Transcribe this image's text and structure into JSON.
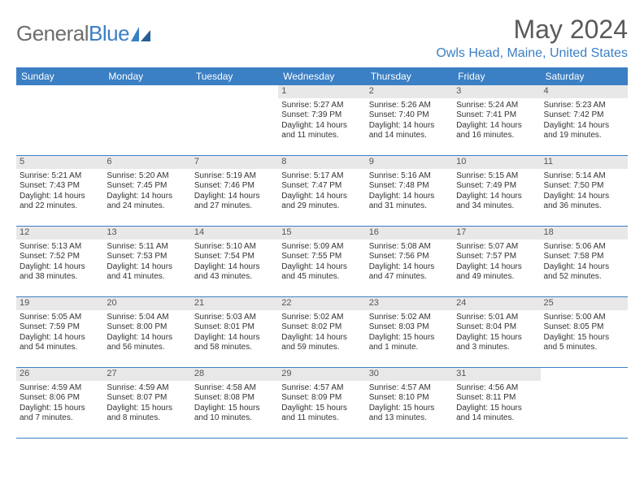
{
  "logo": {
    "text_gray": "General",
    "text_blue": "Blue"
  },
  "title": "May 2024",
  "location": "Owls Head, Maine, United States",
  "colors": {
    "header_bg": "#3b7fc4",
    "header_text": "#ffffff",
    "daynum_bg": "#e8e8e8",
    "border": "#3b7fc4",
    "title_gray": "#5a5a5a",
    "location_blue": "#3b7fc4"
  },
  "day_names": [
    "Sunday",
    "Monday",
    "Tuesday",
    "Wednesday",
    "Thursday",
    "Friday",
    "Saturday"
  ],
  "weeks": [
    [
      {
        "day": "",
        "sunrise": "",
        "sunset": "",
        "daylight": ""
      },
      {
        "day": "",
        "sunrise": "",
        "sunset": "",
        "daylight": ""
      },
      {
        "day": "",
        "sunrise": "",
        "sunset": "",
        "daylight": ""
      },
      {
        "day": "1",
        "sunrise": "Sunrise: 5:27 AM",
        "sunset": "Sunset: 7:39 PM",
        "daylight": "Daylight: 14 hours and 11 minutes."
      },
      {
        "day": "2",
        "sunrise": "Sunrise: 5:26 AM",
        "sunset": "Sunset: 7:40 PM",
        "daylight": "Daylight: 14 hours and 14 minutes."
      },
      {
        "day": "3",
        "sunrise": "Sunrise: 5:24 AM",
        "sunset": "Sunset: 7:41 PM",
        "daylight": "Daylight: 14 hours and 16 minutes."
      },
      {
        "day": "4",
        "sunrise": "Sunrise: 5:23 AM",
        "sunset": "Sunset: 7:42 PM",
        "daylight": "Daylight: 14 hours and 19 minutes."
      }
    ],
    [
      {
        "day": "5",
        "sunrise": "Sunrise: 5:21 AM",
        "sunset": "Sunset: 7:43 PM",
        "daylight": "Daylight: 14 hours and 22 minutes."
      },
      {
        "day": "6",
        "sunrise": "Sunrise: 5:20 AM",
        "sunset": "Sunset: 7:45 PM",
        "daylight": "Daylight: 14 hours and 24 minutes."
      },
      {
        "day": "7",
        "sunrise": "Sunrise: 5:19 AM",
        "sunset": "Sunset: 7:46 PM",
        "daylight": "Daylight: 14 hours and 27 minutes."
      },
      {
        "day": "8",
        "sunrise": "Sunrise: 5:17 AM",
        "sunset": "Sunset: 7:47 PM",
        "daylight": "Daylight: 14 hours and 29 minutes."
      },
      {
        "day": "9",
        "sunrise": "Sunrise: 5:16 AM",
        "sunset": "Sunset: 7:48 PM",
        "daylight": "Daylight: 14 hours and 31 minutes."
      },
      {
        "day": "10",
        "sunrise": "Sunrise: 5:15 AM",
        "sunset": "Sunset: 7:49 PM",
        "daylight": "Daylight: 14 hours and 34 minutes."
      },
      {
        "day": "11",
        "sunrise": "Sunrise: 5:14 AM",
        "sunset": "Sunset: 7:50 PM",
        "daylight": "Daylight: 14 hours and 36 minutes."
      }
    ],
    [
      {
        "day": "12",
        "sunrise": "Sunrise: 5:13 AM",
        "sunset": "Sunset: 7:52 PM",
        "daylight": "Daylight: 14 hours and 38 minutes."
      },
      {
        "day": "13",
        "sunrise": "Sunrise: 5:11 AM",
        "sunset": "Sunset: 7:53 PM",
        "daylight": "Daylight: 14 hours and 41 minutes."
      },
      {
        "day": "14",
        "sunrise": "Sunrise: 5:10 AM",
        "sunset": "Sunset: 7:54 PM",
        "daylight": "Daylight: 14 hours and 43 minutes."
      },
      {
        "day": "15",
        "sunrise": "Sunrise: 5:09 AM",
        "sunset": "Sunset: 7:55 PM",
        "daylight": "Daylight: 14 hours and 45 minutes."
      },
      {
        "day": "16",
        "sunrise": "Sunrise: 5:08 AM",
        "sunset": "Sunset: 7:56 PM",
        "daylight": "Daylight: 14 hours and 47 minutes."
      },
      {
        "day": "17",
        "sunrise": "Sunrise: 5:07 AM",
        "sunset": "Sunset: 7:57 PM",
        "daylight": "Daylight: 14 hours and 49 minutes."
      },
      {
        "day": "18",
        "sunrise": "Sunrise: 5:06 AM",
        "sunset": "Sunset: 7:58 PM",
        "daylight": "Daylight: 14 hours and 52 minutes."
      }
    ],
    [
      {
        "day": "19",
        "sunrise": "Sunrise: 5:05 AM",
        "sunset": "Sunset: 7:59 PM",
        "daylight": "Daylight: 14 hours and 54 minutes."
      },
      {
        "day": "20",
        "sunrise": "Sunrise: 5:04 AM",
        "sunset": "Sunset: 8:00 PM",
        "daylight": "Daylight: 14 hours and 56 minutes."
      },
      {
        "day": "21",
        "sunrise": "Sunrise: 5:03 AM",
        "sunset": "Sunset: 8:01 PM",
        "daylight": "Daylight: 14 hours and 58 minutes."
      },
      {
        "day": "22",
        "sunrise": "Sunrise: 5:02 AM",
        "sunset": "Sunset: 8:02 PM",
        "daylight": "Daylight: 14 hours and 59 minutes."
      },
      {
        "day": "23",
        "sunrise": "Sunrise: 5:02 AM",
        "sunset": "Sunset: 8:03 PM",
        "daylight": "Daylight: 15 hours and 1 minute."
      },
      {
        "day": "24",
        "sunrise": "Sunrise: 5:01 AM",
        "sunset": "Sunset: 8:04 PM",
        "daylight": "Daylight: 15 hours and 3 minutes."
      },
      {
        "day": "25",
        "sunrise": "Sunrise: 5:00 AM",
        "sunset": "Sunset: 8:05 PM",
        "daylight": "Daylight: 15 hours and 5 minutes."
      }
    ],
    [
      {
        "day": "26",
        "sunrise": "Sunrise: 4:59 AM",
        "sunset": "Sunset: 8:06 PM",
        "daylight": "Daylight: 15 hours and 7 minutes."
      },
      {
        "day": "27",
        "sunrise": "Sunrise: 4:59 AM",
        "sunset": "Sunset: 8:07 PM",
        "daylight": "Daylight: 15 hours and 8 minutes."
      },
      {
        "day": "28",
        "sunrise": "Sunrise: 4:58 AM",
        "sunset": "Sunset: 8:08 PM",
        "daylight": "Daylight: 15 hours and 10 minutes."
      },
      {
        "day": "29",
        "sunrise": "Sunrise: 4:57 AM",
        "sunset": "Sunset: 8:09 PM",
        "daylight": "Daylight: 15 hours and 11 minutes."
      },
      {
        "day": "30",
        "sunrise": "Sunrise: 4:57 AM",
        "sunset": "Sunset: 8:10 PM",
        "daylight": "Daylight: 15 hours and 13 minutes."
      },
      {
        "day": "31",
        "sunrise": "Sunrise: 4:56 AM",
        "sunset": "Sunset: 8:11 PM",
        "daylight": "Daylight: 15 hours and 14 minutes."
      },
      {
        "day": "",
        "sunrise": "",
        "sunset": "",
        "daylight": ""
      }
    ]
  ]
}
